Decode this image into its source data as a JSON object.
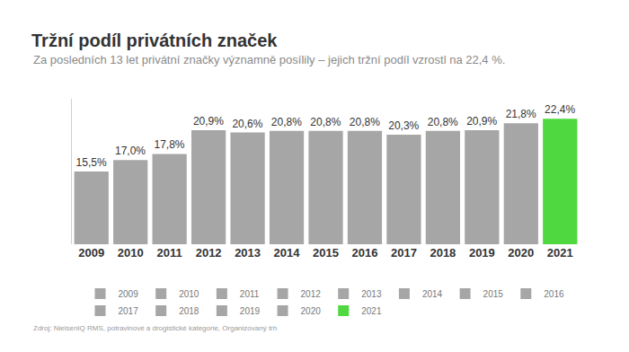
{
  "chart_data": {
    "type": "bar",
    "title": "Tržní podíl privátních značek",
    "subtitle": "Za posledních 13 let privátní značky významně posílily – jejich tržní podíl vzrostl na 22,4 %.",
    "annotations": [
      "Zdroj: NielsenIQ RMS, potravinové a drogistické kategorie, Organizovaný trh"
    ],
    "categories": [
      "2009",
      "2010",
      "2011",
      "2012",
      "2013",
      "2014",
      "2015",
      "2016",
      "2017",
      "2018",
      "2019",
      "2020",
      "2021"
    ],
    "values": [
      15.5,
      17.0,
      17.8,
      20.9,
      20.6,
      20.8,
      20.8,
      20.8,
      20.3,
      20.8,
      20.9,
      21.8,
      22.4
    ],
    "value_labels": [
      "15,5%",
      "17,0%",
      "17,8%",
      "20,9%",
      "20,6%",
      "20,8%",
      "20,8%",
      "20,8%",
      "20,3%",
      "20,8%",
      "20,9%",
      "21,8%",
      "22,4%"
    ],
    "colors": [
      "#a6a6a6",
      "#a6a6a6",
      "#a6a6a6",
      "#a6a6a6",
      "#a6a6a6",
      "#a6a6a6",
      "#a6a6a6",
      "#a6a6a6",
      "#a6a6a6",
      "#a6a6a6",
      "#a6a6a6",
      "#a6a6a6",
      "#4fd83f"
    ],
    "ylim": [
      6,
      25
    ],
    "yticks": [],
    "grid": false,
    "data_labels": true,
    "tick_labels": "x",
    "legend": "bottom"
  }
}
